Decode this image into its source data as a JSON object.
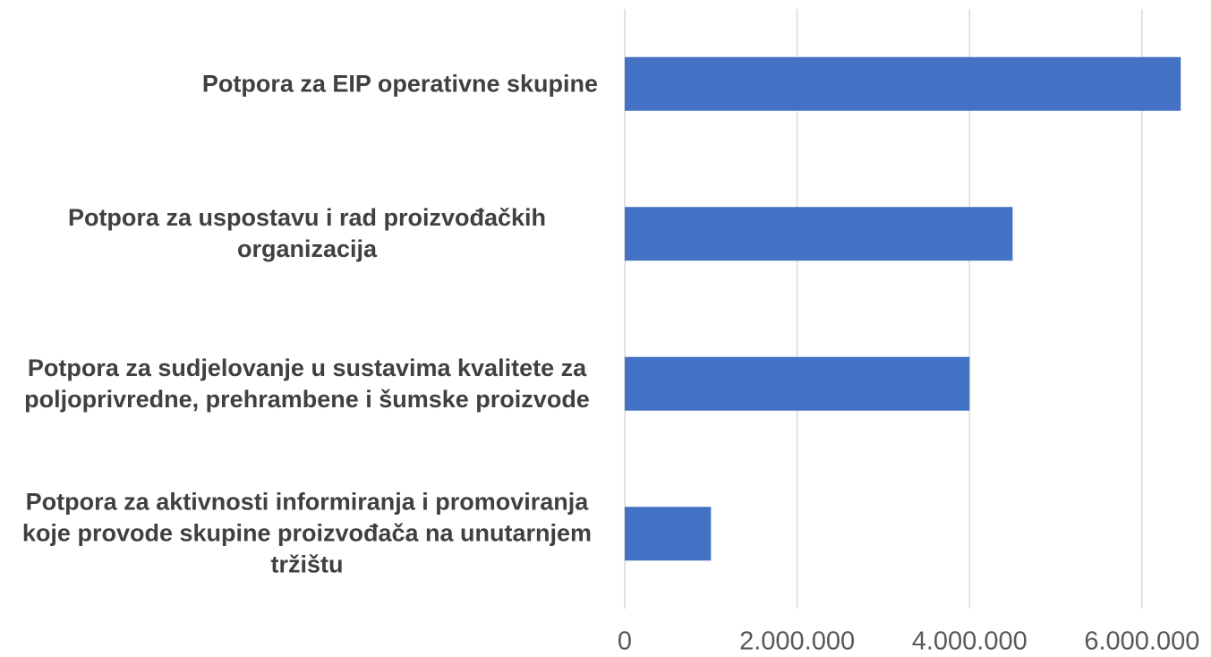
{
  "chart_data": {
    "type": "bar",
    "orientation": "horizontal",
    "categories": [
      "Potpora za EIP operativne skupine",
      "Potpora za uspostavu i rad proizvođačkih organizacija",
      "Potpora za sudjelovanje u sustavima kvalitete za poljoprivredne, prehrambene i šumske proizvode",
      "Potpora za aktivnosti informiranja i promoviranja koje provode skupine proizvođača na unutarnjem tržištu"
    ],
    "values": [
      6450000,
      4500000,
      4000000,
      1000000
    ],
    "color": "#4472c4",
    "xlim": [
      0,
      6500000
    ],
    "xticks": [
      0,
      {
        "value": 2000000,
        "label": "2.000.000"
      },
      {
        "value": 4000000,
        "label": "4.000.000"
      },
      {
        "value": 6000000,
        "label": "6.000.000"
      }
    ],
    "grid": true
  }
}
